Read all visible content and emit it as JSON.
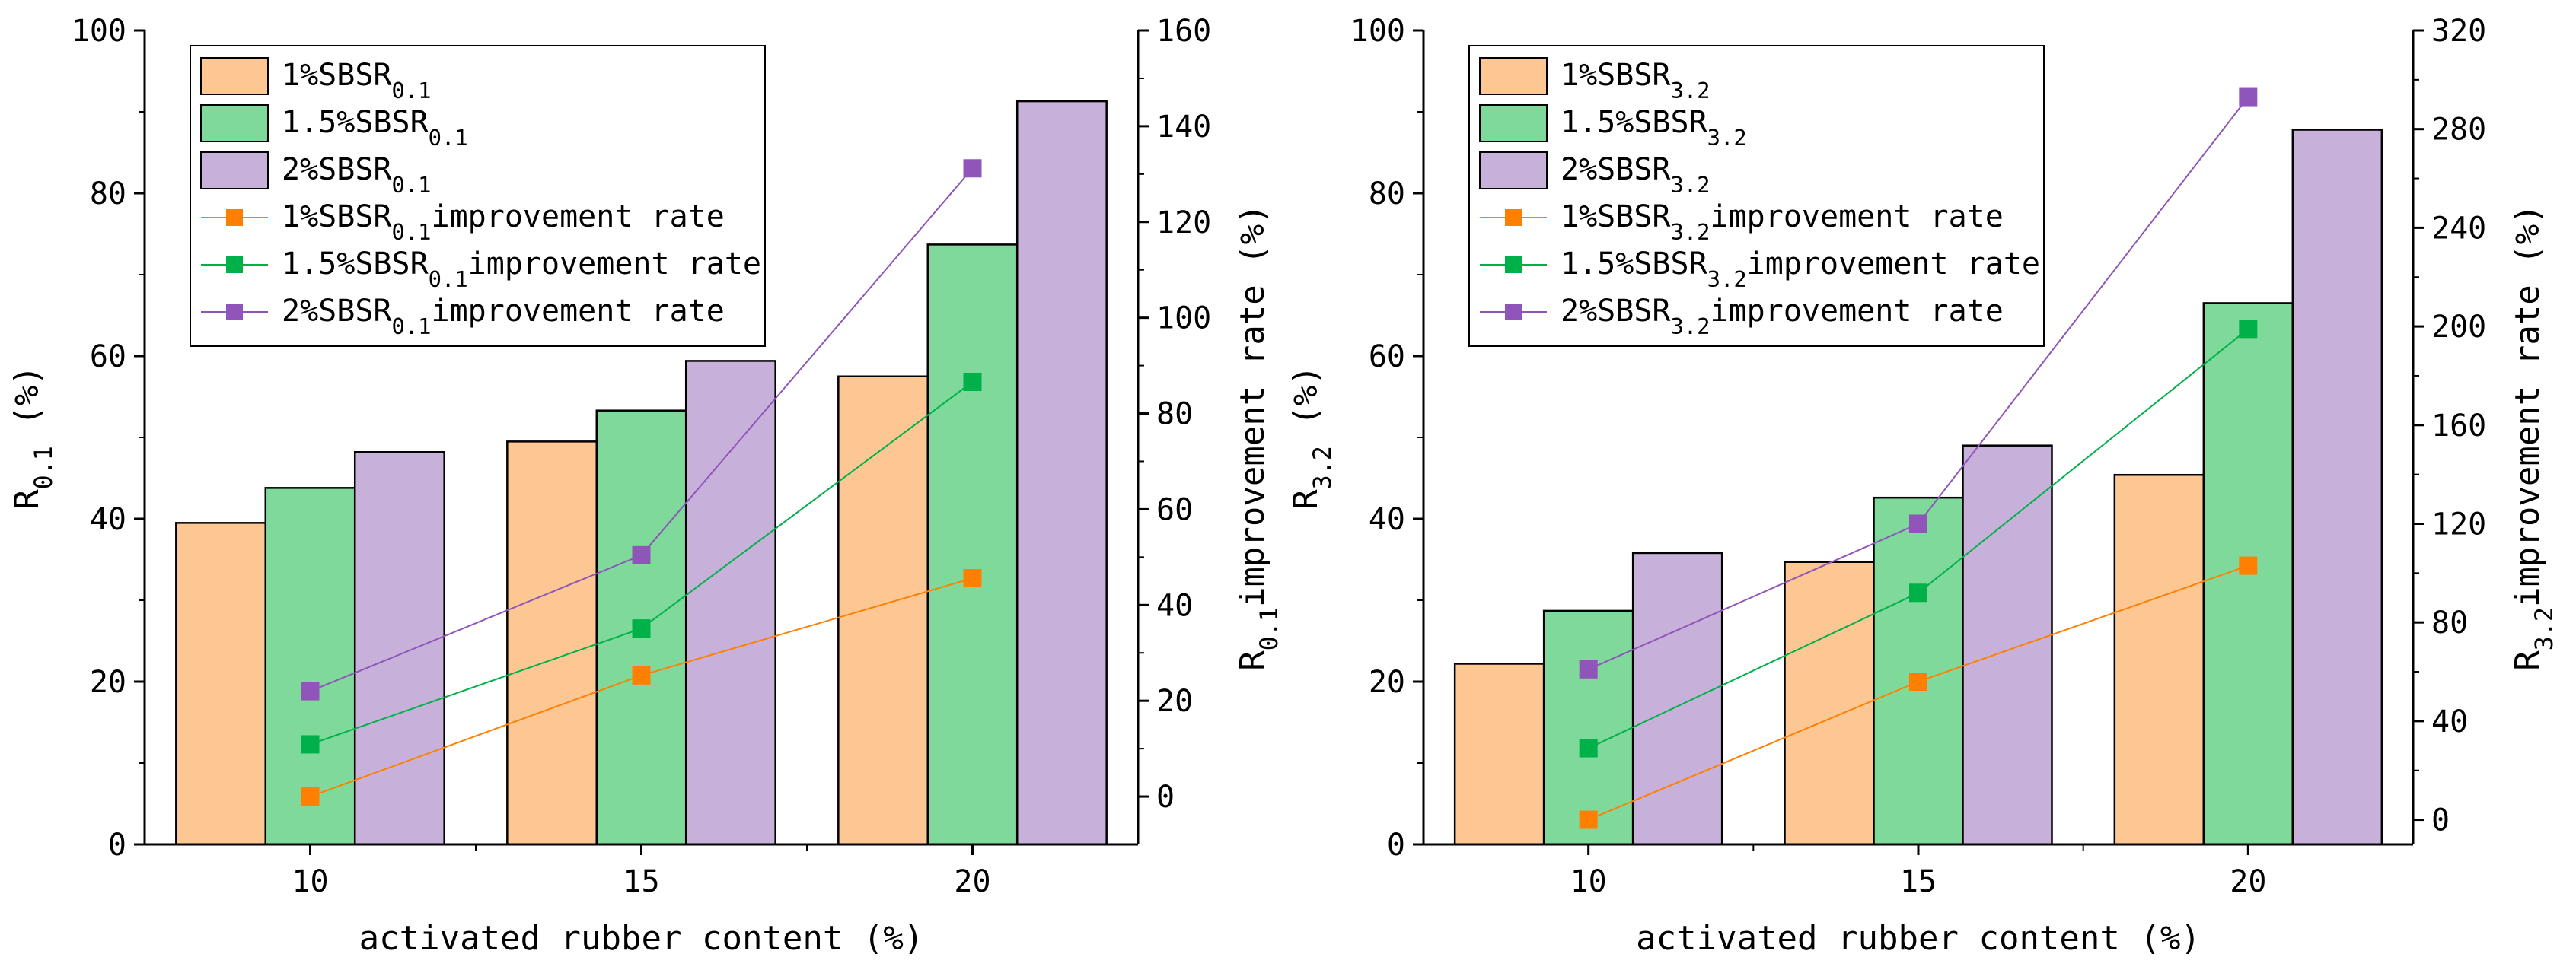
{
  "chart_data": [
    {
      "type": "bar+line",
      "xlabel": "activated rubber content (%)",
      "ylabel": {
        "main": "R",
        "sub": "0.1",
        "tail": " (%)"
      },
      "y2label": {
        "main": "R",
        "sub": "0.1",
        "tail": "improvement rate (%)"
      },
      "categories": [
        "10",
        "15",
        "20"
      ],
      "ylim": [
        0,
        100
      ],
      "yticks": [
        "0",
        "20",
        "40",
        "60",
        "80",
        "100"
      ],
      "y2lim": [
        -10,
        160
      ],
      "y2ticks": [
        "0",
        "20",
        "40",
        "60",
        "80",
        "100",
        "120",
        "140",
        "160"
      ],
      "bars": [
        {
          "name": {
            "main": "1%SBSR",
            "sub": "0.1"
          },
          "color": "#FDC794",
          "values": [
            39.5,
            49.5,
            57.5
          ]
        },
        {
          "name": {
            "main": "1.5%SBSR",
            "sub": "0.1"
          },
          "color": "#7ED99A",
          "values": [
            43.8,
            53.3,
            73.7
          ]
        },
        {
          "name": {
            "main": "2%SBSR",
            "sub": "0.1"
          },
          "color": "#C7B1DA",
          "values": [
            48.2,
            59.4,
            91.3
          ]
        }
      ],
      "lines": [
        {
          "name": {
            "main": "1%SBSR",
            "sub": "0.1",
            "tail": "improvement rate"
          },
          "color": "#FF8000",
          "values": [
            0,
            25.3,
            45.6
          ]
        },
        {
          "name": {
            "main": "1.5%SBSR",
            "sub": "0.1",
            "tail": "improvement rate"
          },
          "color": "#00B14A",
          "values": [
            10.9,
            35.1,
            86.6
          ]
        },
        {
          "name": {
            "main": "2%SBSR",
            "sub": "0.1",
            "tail": "improvement rate"
          },
          "color": "#9055B9",
          "values": [
            22.0,
            50.4,
            131.2
          ]
        }
      ]
    },
    {
      "type": "bar+line",
      "xlabel": "activated rubber content (%)",
      "ylabel": {
        "main": "R",
        "sub": "3.2",
        "tail": " (%)"
      },
      "y2label": {
        "main": "R",
        "sub": "3.2",
        "tail": "improvement rate (%)"
      },
      "categories": [
        "10",
        "15",
        "20"
      ],
      "ylim": [
        0,
        100
      ],
      "yticks": [
        "0",
        "20",
        "40",
        "60",
        "80",
        "100"
      ],
      "y2lim": [
        -10,
        320
      ],
      "y2ticks": [
        "0",
        "40",
        "80",
        "120",
        "160",
        "200",
        "240",
        "280",
        "320"
      ],
      "bars": [
        {
          "name": {
            "main": "1%SBSR",
            "sub": "3.2"
          },
          "color": "#FDC794",
          "values": [
            22.2,
            34.7,
            45.4
          ]
        },
        {
          "name": {
            "main": "1.5%SBSR",
            "sub": "3.2"
          },
          "color": "#7ED99A",
          "values": [
            28.7,
            42.6,
            66.5
          ]
        },
        {
          "name": {
            "main": "2%SBSR",
            "sub": "3.2"
          },
          "color": "#C7B1DA",
          "values": [
            35.8,
            49.0,
            87.8
          ]
        }
      ],
      "lines": [
        {
          "name": {
            "main": "1%SBSR",
            "sub": "3.2",
            "tail": "improvement rate"
          },
          "color": "#FF8000",
          "values": [
            0,
            56,
            103
          ]
        },
        {
          "name": {
            "main": "1.5%SBSR",
            "sub": "3.2",
            "tail": "improvement rate"
          },
          "color": "#00B14A",
          "values": [
            29,
            92,
            199
          ]
        },
        {
          "name": {
            "main": "2%SBSR",
            "sub": "3.2",
            "tail": "improvement rate"
          },
          "color": "#9055B9",
          "values": [
            61,
            120,
            293
          ]
        }
      ]
    }
  ]
}
